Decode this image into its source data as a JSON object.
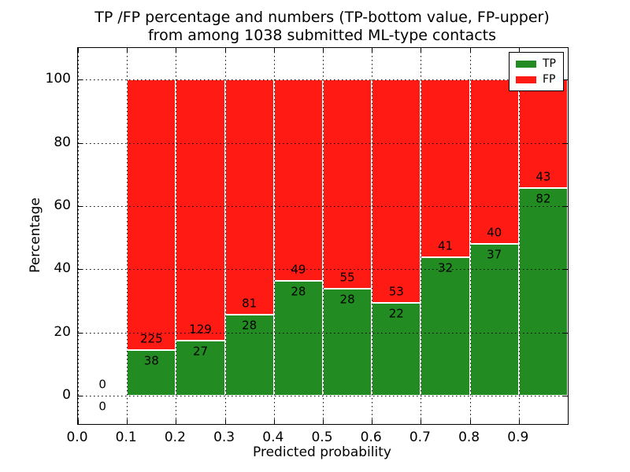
{
  "title": {
    "line1": "TP /FP percentage and numbers (TP-bottom value, FP-upper)",
    "line2": "from among 1038 submitted ML-type contacts"
  },
  "chart_data": {
    "type": "bar",
    "stacked": true,
    "normalized": "each bar sums to 100 percent",
    "title": "TP /FP percentage and numbers (TP-bottom value, FP-upper) from among 1038 submitted ML-type contacts",
    "xlabel": "Predicted probability",
    "ylabel": "Percentage",
    "total_contacts": 1038,
    "xlim": [
      0.0,
      1.0
    ],
    "ylim": [
      -9,
      110
    ],
    "grid": "dotted black, drawn above bars",
    "legend_position": "upper right",
    "xticks": {
      "values": [
        0.0,
        0.1,
        0.2,
        0.3,
        0.4,
        0.5,
        0.6,
        0.7,
        0.8,
        0.9
      ],
      "labels": [
        "0.0",
        "0.1",
        "0.2",
        "0.3",
        "0.4",
        "0.5",
        "0.6",
        "0.7",
        "0.8",
        "0.9"
      ]
    },
    "yticks": {
      "values": [
        0,
        20,
        40,
        60,
        80,
        100
      ],
      "labels": [
        "0",
        "20",
        "40",
        "60",
        "80",
        "100"
      ]
    },
    "series": [
      {
        "name": "TP",
        "color": "#228b22"
      },
      {
        "name": "FP",
        "color": "#ff1a14"
      }
    ],
    "bins": [
      {
        "range": [
          0.0,
          0.1
        ],
        "tp_count": 0,
        "fp_count": 0,
        "tp_pct": 0.0,
        "fp_pct": 0.0
      },
      {
        "range": [
          0.1,
          0.2
        ],
        "tp_count": 38,
        "fp_count": 225,
        "tp_pct": 14.45,
        "fp_pct": 85.55
      },
      {
        "range": [
          0.2,
          0.3
        ],
        "tp_count": 27,
        "fp_count": 129,
        "tp_pct": 17.31,
        "fp_pct": 82.69
      },
      {
        "range": [
          0.3,
          0.4
        ],
        "tp_count": 28,
        "fp_count": 81,
        "tp_pct": 25.69,
        "fp_pct": 74.31
      },
      {
        "range": [
          0.4,
          0.5
        ],
        "tp_count": 28,
        "fp_count": 49,
        "tp_pct": 36.36,
        "fp_pct": 63.64
      },
      {
        "range": [
          0.5,
          0.6
        ],
        "tp_count": 28,
        "fp_count": 55,
        "tp_pct": 33.73,
        "fp_pct": 66.27
      },
      {
        "range": [
          0.6,
          0.7
        ],
        "tp_count": 22,
        "fp_count": 53,
        "tp_pct": 29.33,
        "fp_pct": 70.67
      },
      {
        "range": [
          0.7,
          0.8
        ],
        "tp_count": 32,
        "fp_count": 41,
        "tp_pct": 43.84,
        "fp_pct": 56.16
      },
      {
        "range": [
          0.8,
          0.9
        ],
        "tp_count": 37,
        "fp_count": 40,
        "tp_pct": 48.05,
        "fp_pct": 51.95
      },
      {
        "range": [
          0.9,
          1.0
        ],
        "tp_count": 82,
        "fp_count": 43,
        "tp_pct": 65.6,
        "fp_pct": 34.4
      }
    ],
    "legend": {
      "entries": [
        {
          "label": "TP",
          "color": "#228b22"
        },
        {
          "label": "FP",
          "color": "#ff1a14"
        }
      ]
    }
  }
}
